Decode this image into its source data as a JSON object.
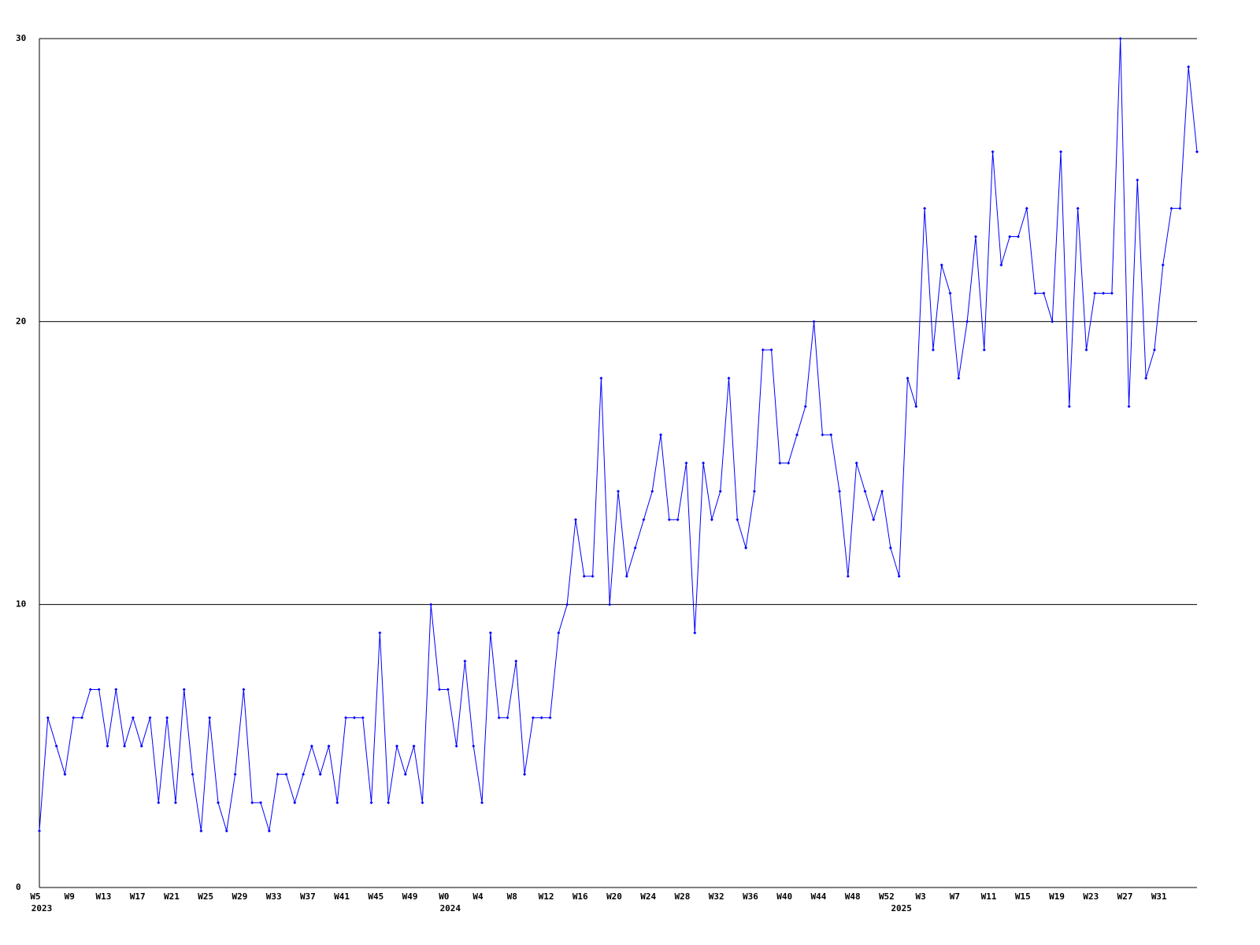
{
  "chart_data": {
    "type": "line",
    "color": "#0000ff",
    "grid": true,
    "ylim": [
      0,
      30
    ],
    "yticks": [
      0,
      10,
      20,
      30
    ],
    "categories": [
      "W5",
      null,
      null,
      null,
      "W9",
      null,
      null,
      null,
      "W13",
      null,
      null,
      null,
      "W17",
      null,
      null,
      null,
      "W21",
      null,
      null,
      null,
      "W25",
      null,
      null,
      null,
      "W29",
      null,
      null,
      null,
      "W33",
      null,
      null,
      null,
      "W37",
      null,
      null,
      null,
      "W41",
      null,
      null,
      null,
      "W45",
      null,
      null,
      null,
      "W49",
      null,
      null,
      null,
      "W0",
      null,
      null,
      null,
      "W4",
      null,
      null,
      null,
      "W8",
      null,
      null,
      null,
      "W12",
      null,
      null,
      null,
      "W16",
      null,
      null,
      null,
      "W20",
      null,
      null,
      null,
      "W24",
      null,
      null,
      null,
      "W28",
      null,
      null,
      null,
      "W32",
      null,
      null,
      null,
      "W36",
      null,
      null,
      null,
      "W40",
      null,
      null,
      null,
      "W44",
      null,
      null,
      null,
      "W48",
      null,
      null,
      null,
      "W52",
      null,
      null,
      null,
      "W3",
      null,
      null,
      null,
      "W7",
      null,
      null,
      null,
      "W11",
      null,
      null,
      null,
      "W15",
      null,
      null,
      null,
      "W19",
      null,
      null,
      null,
      "W23",
      null,
      null,
      null,
      "W27",
      null,
      null,
      null,
      "W31",
      null,
      null,
      null,
      null
    ],
    "year_labels": [
      "2023",
      null,
      null,
      null,
      null,
      null,
      null,
      null,
      null,
      null,
      null,
      null,
      null,
      null,
      null,
      null,
      null,
      null,
      null,
      null,
      null,
      null,
      null,
      null,
      null,
      null,
      null,
      null,
      null,
      null,
      null,
      null,
      null,
      null,
      null,
      null,
      null,
      null,
      null,
      null,
      null,
      null,
      null,
      null,
      null,
      null,
      null,
      null,
      "2024",
      null,
      null,
      null,
      null,
      null,
      null,
      null,
      null,
      null,
      null,
      null,
      null,
      null,
      null,
      null,
      null,
      null,
      null,
      null,
      null,
      null,
      null,
      null,
      null,
      null,
      null,
      null,
      null,
      null,
      null,
      null,
      null,
      null,
      null,
      null,
      null,
      null,
      null,
      null,
      null,
      null,
      null,
      null,
      null,
      null,
      null,
      null,
      null,
      null,
      null,
      null,
      null,
      "2025",
      null,
      null,
      null,
      null,
      null,
      null,
      null,
      null,
      null,
      null,
      null,
      null,
      null,
      null,
      null,
      null,
      null,
      null,
      null,
      null,
      null,
      null,
      null,
      null,
      null,
      null,
      null,
      null,
      null,
      null,
      null,
      null,
      null,
      null,
      null
    ],
    "values": [
      2,
      6,
      5,
      4,
      6,
      6,
      7,
      7,
      5,
      7,
      5,
      6,
      5,
      6,
      3,
      6,
      3,
      7,
      4,
      2,
      6,
      3,
      2,
      4,
      7,
      3,
      3,
      2,
      4,
      4,
      3,
      4,
      5,
      4,
      5,
      3,
      6,
      6,
      6,
      3,
      9,
      3,
      5,
      4,
      5,
      3,
      10,
      7,
      7,
      5,
      8,
      5,
      3,
      9,
      6,
      6,
      8,
      4,
      6,
      6,
      6,
      9,
      10,
      13,
      11,
      11,
      18,
      10,
      14,
      11,
      12,
      13,
      14,
      16,
      13,
      13,
      15,
      9,
      15,
      13,
      14,
      18,
      13,
      12,
      14,
      19,
      19,
      15,
      15,
      16,
      17,
      20,
      16,
      16,
      14,
      11,
      15,
      14,
      13,
      14,
      12,
      11,
      18,
      17,
      24,
      19,
      22,
      21,
      18,
      20,
      23,
      19,
      26,
      22,
      23,
      23,
      24,
      21,
      21,
      20,
      26,
      17,
      24,
      19,
      21,
      21,
      21,
      30,
      17,
      25,
      18,
      19,
      22,
      24,
      24,
      29,
      26
    ]
  }
}
